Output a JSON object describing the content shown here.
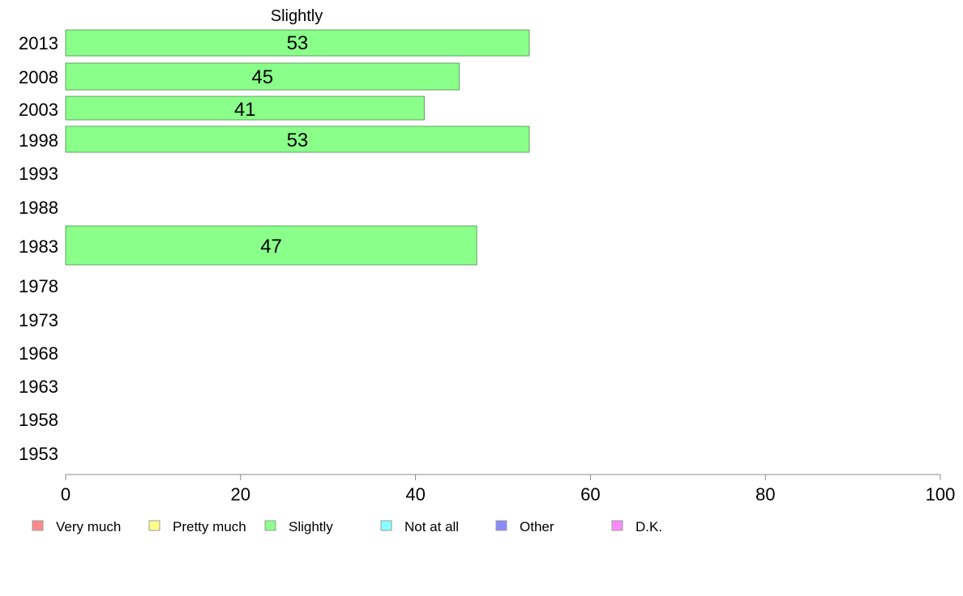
{
  "chart_data": {
    "type": "bar",
    "orientation": "horizontal",
    "title": "Slightly",
    "categories": [
      "2013",
      "2008",
      "2003",
      "1998",
      "1993",
      "1988",
      "1983",
      "1978",
      "1973",
      "1968",
      "1963",
      "1958",
      "1953"
    ],
    "series": [
      {
        "name": "Slightly",
        "values": [
          53,
          45,
          41,
          53,
          null,
          null,
          47,
          null,
          null,
          null,
          null,
          null,
          null
        ]
      }
    ],
    "xlim": [
      0,
      100
    ],
    "xticks": [
      0,
      20,
      40,
      60,
      80,
      100
    ],
    "grid": false,
    "legend_position": "bottom",
    "legend": [
      {
        "label": "Very much",
        "color": "#ff8a8a"
      },
      {
        "label": "Pretty much",
        "color": "#ffff8a"
      },
      {
        "label": "Slightly",
        "color": "#8aff8a"
      },
      {
        "label": "Not at all",
        "color": "#8affff"
      },
      {
        "label": "Other",
        "color": "#8a8aff"
      },
      {
        "label": "D.K.",
        "color": "#ff8aff"
      }
    ],
    "bar_color": "#8aff8a",
    "bar_stroke": "#5fa05f"
  }
}
